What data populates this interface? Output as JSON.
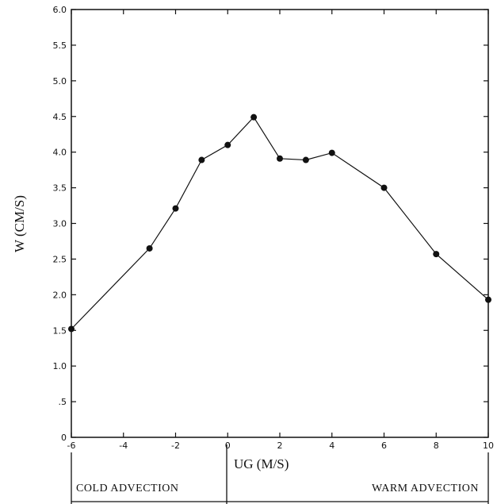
{
  "chart_data": {
    "type": "line",
    "title": "",
    "xlabel": "UG (M/S)",
    "ylabel": "W (CM/S)",
    "xlim": [
      -6,
      10
    ],
    "ylim": [
      0,
      6
    ],
    "grid": false,
    "x_ticks": [
      -6,
      -4,
      -2,
      0,
      2,
      4,
      6,
      8,
      10
    ],
    "x_tick_labels": [
      "-6",
      "-4",
      "-2",
      "0",
      "2",
      "4",
      "6",
      "8",
      "10"
    ],
    "y_ticks": [
      0,
      0.5,
      1.0,
      1.5,
      2.0,
      2.5,
      3.0,
      3.5,
      4.0,
      4.5,
      5.0,
      5.5,
      6.0
    ],
    "y_tick_labels": [
      "0",
      ".5",
      "1.0",
      "1.5",
      "2.0",
      "2.5",
      "3.0",
      "3.5",
      "4.0",
      "4.5",
      "5.0",
      "5.5",
      "6.0"
    ],
    "series": [
      {
        "x": [
          -6,
          -3,
          -2,
          -1,
          0,
          1,
          2,
          3,
          4,
          6,
          8,
          10
        ],
        "y": [
          1.52,
          2.65,
          3.21,
          3.89,
          4.1,
          4.49,
          3.91,
          3.89,
          3.99,
          3.5,
          2.57,
          1.93
        ]
      }
    ],
    "regions": [
      {
        "label": "COLD ADVECTION",
        "from": -6,
        "to": 0
      },
      {
        "label": "WARM ADVECTION",
        "from": 0,
        "to": 10
      }
    ]
  }
}
